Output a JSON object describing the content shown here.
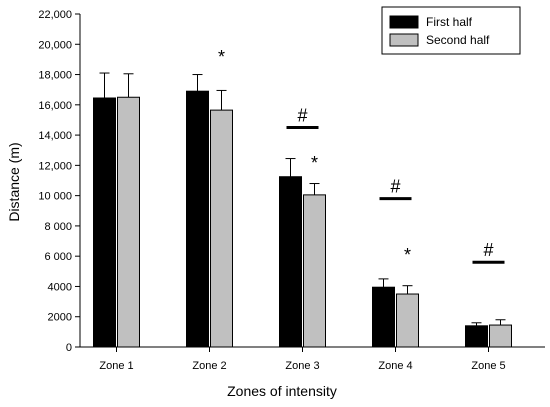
{
  "chart_data": {
    "type": "bar",
    "xlabel": "Zones of intensity",
    "ylabel": "Distance (m)",
    "ylim": [
      0,
      22000
    ],
    "yticks": [
      0,
      2000,
      4000,
      6000,
      8000,
      10000,
      12000,
      14000,
      16000,
      18000,
      20000,
      22000
    ],
    "ytick_labels": [
      "0",
      "2000",
      "4000",
      "6 000",
      "8 000",
      "10 000",
      "12,000",
      "14,000",
      "16,000",
      "18,000",
      "20,000",
      "22,000"
    ],
    "categories": [
      "Zone 1",
      "Zone 2",
      "Zone 3",
      "Zone 4",
      "Zone 5"
    ],
    "series": [
      {
        "name": "First half",
        "color": "#000000",
        "values": [
          16450,
          16900,
          11250,
          3950,
          1400
        ],
        "errors": [
          1650,
          1100,
          1200,
          550,
          200
        ]
      },
      {
        "name": "Second half",
        "color": "#c0c0c0",
        "values": [
          16500,
          15650,
          10050,
          3500,
          1450
        ],
        "errors": [
          1550,
          1300,
          750,
          550,
          350
        ]
      }
    ],
    "legend_position": "top-right",
    "grid": false,
    "annotations": [
      {
        "category": 1,
        "text": "*",
        "type": "asterisk",
        "y": 19300
      },
      {
        "category": 2,
        "text": "#",
        "type": "hash",
        "y": 14500
      },
      {
        "category": 2,
        "text": "*",
        "type": "asterisk",
        "y": 12300
      },
      {
        "category": 3,
        "text": "#",
        "type": "hash",
        "y": 9800
      },
      {
        "category": 3,
        "text": "*",
        "type": "asterisk",
        "y": 6200
      },
      {
        "category": 4,
        "text": "#",
        "type": "hash",
        "y": 5600
      }
    ]
  }
}
